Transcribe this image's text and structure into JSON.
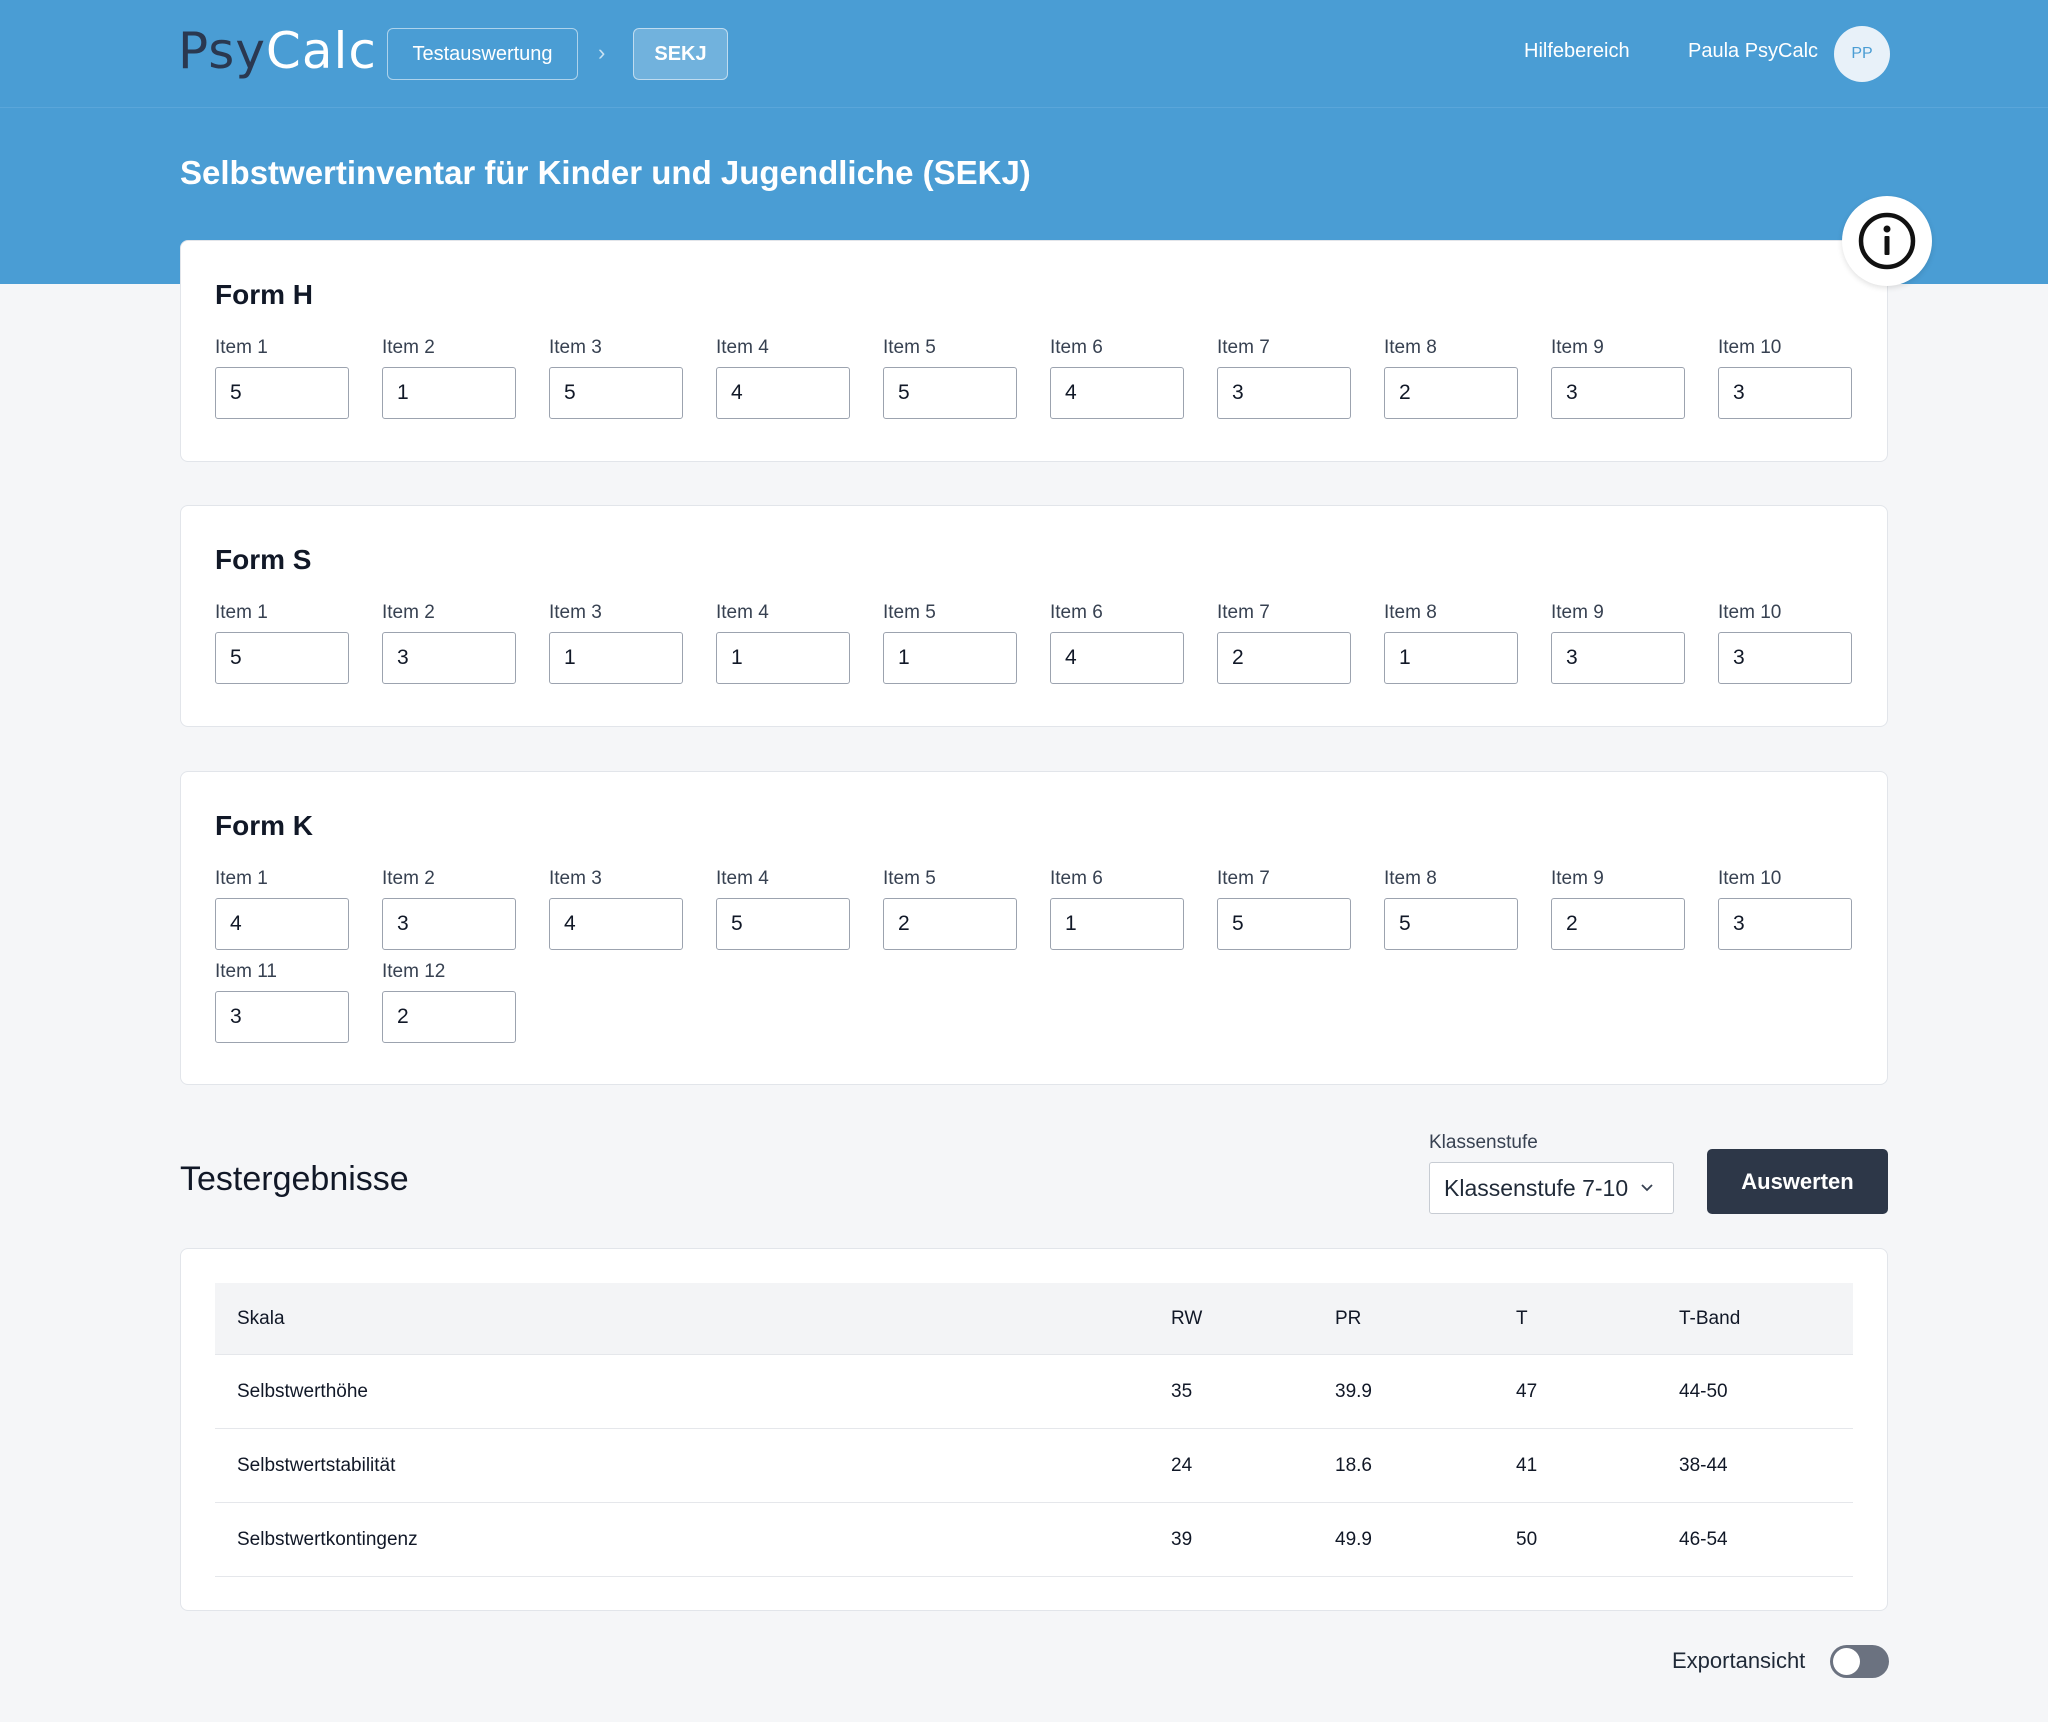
{
  "header": {
    "logo_part1": "Psy",
    "logo_part2": "Calc",
    "breadcrumb": [
      {
        "label": "Testauswertung"
      },
      {
        "label": "SEKJ"
      }
    ],
    "help_label": "Hilfebereich",
    "user_name": "Paula PsyCalc",
    "user_initials": "PP"
  },
  "page": {
    "title": "Selbstwertinventar für Kinder und Jugendliche (SEKJ)"
  },
  "forms": {
    "h": {
      "title": "Form H",
      "items": [
        {
          "label": "Item 1",
          "value": "5"
        },
        {
          "label": "Item 2",
          "value": "1"
        },
        {
          "label": "Item 3",
          "value": "5"
        },
        {
          "label": "Item 4",
          "value": "4"
        },
        {
          "label": "Item 5",
          "value": "5"
        },
        {
          "label": "Item 6",
          "value": "4"
        },
        {
          "label": "Item 7",
          "value": "3"
        },
        {
          "label": "Item 8",
          "value": "2"
        },
        {
          "label": "Item 9",
          "value": "3"
        },
        {
          "label": "Item 10",
          "value": "3"
        }
      ]
    },
    "s": {
      "title": "Form S",
      "items": [
        {
          "label": "Item 1",
          "value": "5"
        },
        {
          "label": "Item 2",
          "value": "3"
        },
        {
          "label": "Item 3",
          "value": "1"
        },
        {
          "label": "Item 4",
          "value": "1"
        },
        {
          "label": "Item 5",
          "value": "1"
        },
        {
          "label": "Item 6",
          "value": "4"
        },
        {
          "label": "Item 7",
          "value": "2"
        },
        {
          "label": "Item 8",
          "value": "1"
        },
        {
          "label": "Item 9",
          "value": "3"
        },
        {
          "label": "Item 10",
          "value": "3"
        }
      ]
    },
    "k": {
      "title": "Form K",
      "items": [
        {
          "label": "Item 1",
          "value": "4"
        },
        {
          "label": "Item 2",
          "value": "3"
        },
        {
          "label": "Item 3",
          "value": "4"
        },
        {
          "label": "Item 4",
          "value": "5"
        },
        {
          "label": "Item 5",
          "value": "2"
        },
        {
          "label": "Item 6",
          "value": "1"
        },
        {
          "label": "Item 7",
          "value": "5"
        },
        {
          "label": "Item 8",
          "value": "5"
        },
        {
          "label": "Item 9",
          "value": "2"
        },
        {
          "label": "Item 10",
          "value": "3"
        },
        {
          "label": "Item 11",
          "value": "3"
        },
        {
          "label": "Item 12",
          "value": "2"
        }
      ]
    }
  },
  "results": {
    "title": "Testergebnisse",
    "klassenstufe_label": "Klassenstufe",
    "klassenstufe_value": "Klassenstufe 7-10",
    "evaluate_label": "Auswerten",
    "columns": {
      "skala": "Skala",
      "rw": "RW",
      "pr": "PR",
      "t": "T",
      "tband": "T-Band"
    },
    "rows": [
      {
        "skala": "Selbstwerthöhe",
        "rw": "35",
        "pr": "39.9",
        "t": "47",
        "tband": "44-50"
      },
      {
        "skala": "Selbstwertstabilität",
        "rw": "24",
        "pr": "18.6",
        "t": "41",
        "tband": "38-44"
      },
      {
        "skala": "Selbstwertkontingenz",
        "rw": "39",
        "pr": "49.9",
        "t": "50",
        "tband": "46-54"
      }
    ]
  },
  "export": {
    "label": "Exportansicht",
    "enabled": false
  }
}
